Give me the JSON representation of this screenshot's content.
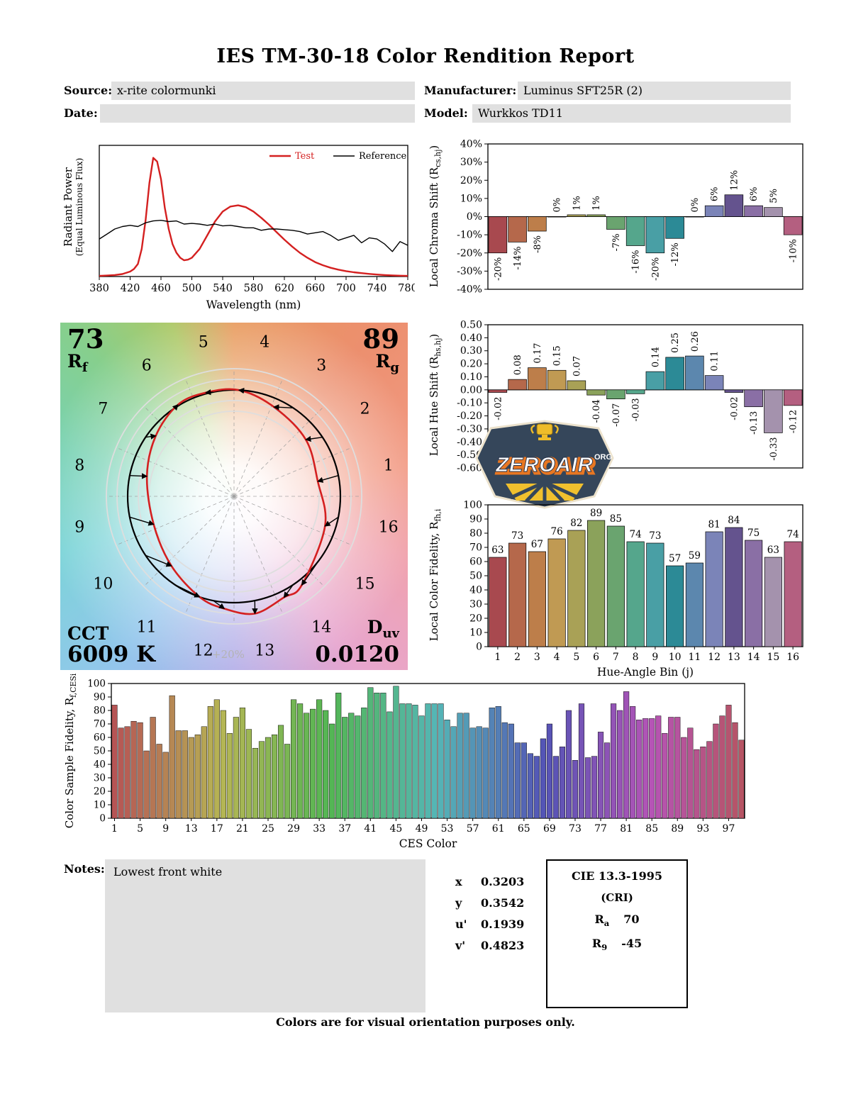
{
  "report": {
    "title": "IES TM-30-18 Color Rendition Report",
    "footer": "Colors are for visual orientation purposes only."
  },
  "header": {
    "source": {
      "label": "Source:",
      "value": "x-rite colormunki"
    },
    "manufacturer": {
      "label": "Manufacturer:",
      "value": "Luminus SFT25R (2)"
    },
    "date": {
      "label": "Date:",
      "value": ""
    },
    "model": {
      "label": "Model:",
      "value": "Wurkkos TD11"
    }
  },
  "notes": {
    "label": "Notes:",
    "value": "Lowest front white"
  },
  "chromaticity": {
    "rows": [
      {
        "label": "x",
        "value": "0.3203"
      },
      {
        "label": "y",
        "value": "0.3542"
      },
      {
        "label": "u'",
        "value": "0.1939"
      },
      {
        "label": "v'",
        "value": "0.4823"
      }
    ]
  },
  "cri": {
    "title": "CIE 13.3-1995",
    "subtitle": "(CRI)",
    "ra_base": "R",
    "ra_sub": "a",
    "ra_value": "70",
    "r9_base": "R",
    "r9_sub": "9",
    "r9_value": "-45"
  },
  "cvg": {
    "rf_value": "73",
    "rf_base": "R",
    "rf_sub": "f",
    "rg_value": "89",
    "rg_base": "R",
    "rg_sub": "g",
    "cct_label": "CCT",
    "cct_value": "6009 K",
    "duv_base": "D",
    "duv_sub": "uv",
    "duv_value": "0.0120",
    "ring_label": "+20%",
    "bins": [
      "1",
      "2",
      "3",
      "4",
      "5",
      "6",
      "7",
      "8",
      "9",
      "10",
      "11",
      "12",
      "13",
      "14",
      "15",
      "16"
    ]
  },
  "logo": {
    "brand": "ZEROAIR",
    "tld": "ORG"
  },
  "hue_bin_colors": [
    "#a8494f",
    "#b5684b",
    "#bd7e4a",
    "#c09a53",
    "#a9a156",
    "#8ba25b",
    "#6aa46f",
    "#55a68c",
    "#499fa5",
    "#2c8a96",
    "#5c87ae",
    "#7b84b8",
    "#64538e",
    "#8a6fa5",
    "#a492ad",
    "#b45f80"
  ],
  "chart_data": [
    {
      "id": "spd",
      "type": "line",
      "xlabel": "Wavelength (nm)",
      "ylabel_line1": "Radiant Power",
      "ylabel_line2": "(Equal Luminous Flux)",
      "xlim": [
        380,
        780
      ],
      "ylim": [
        0,
        1.05
      ],
      "xticks": [
        380,
        420,
        460,
        500,
        540,
        580,
        620,
        660,
        700,
        740,
        780
      ],
      "legend_position": "upper right",
      "series": [
        {
          "name": "Test",
          "color": "#d42020",
          "x": [
            380,
            390,
            400,
            410,
            420,
            425,
            430,
            435,
            440,
            445,
            450,
            455,
            460,
            465,
            470,
            475,
            480,
            485,
            490,
            495,
            500,
            510,
            520,
            530,
            540,
            550,
            560,
            570,
            580,
            590,
            600,
            610,
            620,
            630,
            640,
            650,
            660,
            670,
            680,
            690,
            700,
            710,
            720,
            730,
            740,
            750,
            760,
            770,
            780
          ],
          "y": [
            0.005,
            0.008,
            0.012,
            0.02,
            0.04,
            0.06,
            0.1,
            0.22,
            0.45,
            0.75,
            0.95,
            0.92,
            0.78,
            0.55,
            0.38,
            0.26,
            0.19,
            0.15,
            0.13,
            0.135,
            0.15,
            0.22,
            0.33,
            0.44,
            0.52,
            0.56,
            0.57,
            0.555,
            0.52,
            0.47,
            0.415,
            0.355,
            0.295,
            0.24,
            0.19,
            0.15,
            0.115,
            0.09,
            0.07,
            0.055,
            0.043,
            0.034,
            0.027,
            0.021,
            0.016,
            0.012,
            0.009,
            0.007,
            0.005
          ]
        },
        {
          "name": "Reference",
          "color": "#000000",
          "x": [
            380,
            390,
            400,
            410,
            420,
            430,
            440,
            450,
            460,
            470,
            480,
            490,
            500,
            510,
            520,
            530,
            540,
            550,
            560,
            570,
            580,
            590,
            600,
            610,
            620,
            630,
            640,
            650,
            660,
            670,
            680,
            690,
            700,
            710,
            720,
            730,
            740,
            750,
            760,
            770,
            780
          ],
          "y": [
            0.3,
            0.34,
            0.38,
            0.4,
            0.41,
            0.4,
            0.43,
            0.445,
            0.45,
            0.44,
            0.445,
            0.42,
            0.425,
            0.42,
            0.41,
            0.42,
            0.405,
            0.41,
            0.4,
            0.39,
            0.39,
            0.37,
            0.38,
            0.38,
            0.375,
            0.37,
            0.36,
            0.34,
            0.35,
            0.36,
            0.33,
            0.29,
            0.31,
            0.33,
            0.27,
            0.31,
            0.3,
            0.26,
            0.2,
            0.28,
            0.25
          ]
        }
      ]
    },
    {
      "id": "chroma",
      "type": "bar",
      "ylabel": {
        "pre": "Local Chroma Shift (R",
        "sub": "cs,hj",
        "post": ")"
      },
      "categories": [
        1,
        2,
        3,
        4,
        5,
        6,
        7,
        8,
        9,
        10,
        11,
        12,
        13,
        14,
        15,
        16
      ],
      "values": [
        -20,
        -14,
        -8,
        0,
        1,
        1,
        -7,
        -16,
        -20,
        -12,
        0,
        6,
        12,
        6,
        5,
        -10
      ],
      "labels": [
        "-20%",
        "-14%",
        "-8%",
        "0%",
        "1%",
        "1%",
        "-7%",
        "-16%",
        "-20%",
        "-12%",
        "0%",
        "6%",
        "12%",
        "6%",
        "5%",
        "-10%"
      ],
      "ylim": [
        -40,
        40
      ],
      "yticks": [
        [
          40,
          "40%"
        ],
        [
          30,
          "30%"
        ],
        [
          20,
          "20%"
        ],
        [
          10,
          "10%"
        ],
        [
          0,
          "0%"
        ],
        [
          -10,
          "-10%"
        ],
        [
          -20,
          "-20%"
        ],
        [
          -30,
          "-30%"
        ],
        [
          -40,
          "-40%"
        ]
      ],
      "zero_line": true,
      "colors_ref": "hue_bins"
    },
    {
      "id": "hueshift",
      "type": "bar",
      "ylabel": {
        "pre": "Local Hue Shift (R",
        "sub": "hs,hj",
        "post": ")"
      },
      "categories": [
        1,
        2,
        3,
        4,
        5,
        6,
        7,
        8,
        9,
        10,
        11,
        12,
        13,
        14,
        15,
        16
      ],
      "values": [
        -0.02,
        0.08,
        0.17,
        0.15,
        0.07,
        -0.04,
        -0.07,
        -0.03,
        0.14,
        0.25,
        0.26,
        0.11,
        -0.02,
        -0.13,
        -0.33,
        -0.12
      ],
      "labels": [
        "-0.02",
        "0.08",
        "0.17",
        "0.15",
        "0.07",
        "-0.04",
        "-0.07",
        "-0.03",
        "0.14",
        "0.25",
        "0.26",
        "0.11",
        "-0.02",
        "-0.13",
        "-0.33",
        "-0.12"
      ],
      "ylim": [
        -0.6,
        0.5
      ],
      "yticks": [
        [
          0.5,
          "0.50"
        ],
        [
          0.4,
          "0.40"
        ],
        [
          0.3,
          "0.30"
        ],
        [
          0.2,
          "0.20"
        ],
        [
          0.1,
          "0.10"
        ],
        [
          0,
          "0.00"
        ],
        [
          -0.1,
          "-0.10"
        ],
        [
          -0.2,
          "-0.20"
        ],
        [
          -0.3,
          "-0.30"
        ],
        [
          -0.4,
          "-0.40"
        ],
        [
          -0.5,
          "-0.50"
        ],
        [
          -0.6,
          "-0.60"
        ]
      ],
      "zero_line": true,
      "colors_ref": "hue_bins"
    },
    {
      "id": "fidelity",
      "type": "bar",
      "xlabel": "Hue-Angle Bin (j)",
      "ylabel": {
        "pre": "Local Color Fidelity, R",
        "sub": "fh,i",
        "post": ""
      },
      "categories": [
        1,
        2,
        3,
        4,
        5,
        6,
        7,
        8,
        9,
        10,
        11,
        12,
        13,
        14,
        15,
        16
      ],
      "values": [
        63,
        73,
        67,
        76,
        82,
        89,
        85,
        74,
        73,
        57,
        59,
        81,
        84,
        75,
        63,
        74
      ],
      "labels": [
        "63",
        "73",
        "67",
        "76",
        "82",
        "89",
        "85",
        "74",
        "73",
        "57",
        "59",
        "81",
        "84",
        "75",
        "63",
        "74"
      ],
      "ylim": [
        0,
        100
      ],
      "yticks": [
        [
          100,
          "100"
        ],
        [
          90,
          "90"
        ],
        [
          80,
          "80"
        ],
        [
          70,
          "70"
        ],
        [
          60,
          "60"
        ],
        [
          50,
          "50"
        ],
        [
          40,
          "40"
        ],
        [
          30,
          "30"
        ],
        [
          20,
          "20"
        ],
        [
          10,
          "10"
        ],
        [
          0,
          "0"
        ]
      ],
      "xticks": [
        1,
        2,
        3,
        4,
        5,
        6,
        7,
        8,
        9,
        10,
        11,
        12,
        13,
        14,
        15,
        16
      ],
      "colors_ref": "hue_bins"
    },
    {
      "id": "ces",
      "type": "bar",
      "xlabel": "CES Color",
      "ylabel": {
        "pre": "Color Sample Fidelity, R",
        "sub": "f,CESi",
        "post": ""
      },
      "values": [
        84,
        67,
        68,
        72,
        71,
        50,
        75,
        55,
        49,
        91,
        65,
        65,
        60,
        62,
        68,
        83,
        88,
        80,
        63,
        75,
        82,
        66,
        52,
        57,
        60,
        62,
        69,
        55,
        88,
        85,
        78,
        81,
        88,
        80,
        70,
        93,
        75,
        78,
        76,
        82,
        97,
        93,
        93,
        79,
        98,
        85,
        85,
        84,
        76,
        85,
        85,
        85,
        73,
        68,
        78,
        78,
        67,
        68,
        67,
        82,
        83,
        71,
        70,
        56,
        56,
        48,
        46,
        59,
        70,
        46,
        53,
        80,
        43,
        85,
        45,
        46,
        64,
        56,
        85,
        80,
        94,
        83,
        73,
        74,
        74,
        76,
        63,
        75,
        75,
        60,
        67,
        51,
        53,
        57,
        70,
        76,
        84,
        71,
        58
      ],
      "ylim": [
        0,
        100
      ],
      "yticks": [
        [
          100,
          "100"
        ],
        [
          90,
          "90"
        ],
        [
          80,
          "80"
        ],
        [
          70,
          "70"
        ],
        [
          60,
          "60"
        ],
        [
          50,
          "50"
        ],
        [
          40,
          "40"
        ],
        [
          30,
          "30"
        ],
        [
          20,
          "20"
        ],
        [
          10,
          "10"
        ],
        [
          0,
          "0"
        ]
      ],
      "xticks": [
        1,
        5,
        9,
        13,
        17,
        21,
        25,
        29,
        33,
        37,
        41,
        45,
        49,
        53,
        57,
        61,
        65,
        69,
        73,
        77,
        81,
        85,
        89,
        93,
        97
      ],
      "color_scheme": {
        "type": "hsl-sweep",
        "hue_start": 0,
        "hue_end": 350,
        "saturation": 40,
        "lightness": 52
      }
    }
  ]
}
